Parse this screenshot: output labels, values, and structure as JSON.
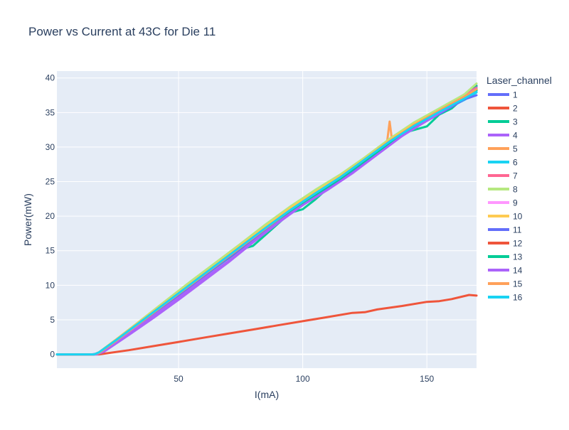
{
  "chart_data": {
    "type": "line",
    "title": "Power vs Current at 43C for Die 11",
    "xlabel": "I(mA)",
    "ylabel": "Power(mW)",
    "xlim": [
      1,
      170
    ],
    "ylim": [
      -2,
      41
    ],
    "xticks": [
      50,
      100,
      150
    ],
    "yticks": [
      0,
      5,
      10,
      15,
      20,
      25,
      30,
      35,
      40
    ],
    "grid": true,
    "legend_title": "Laser_channel",
    "legend_position": "right",
    "plot_background": "#e5ecf6",
    "series": [
      {
        "name": "1",
        "color": "#636efa",
        "points": [
          [
            1,
            0
          ],
          [
            15,
            0
          ],
          [
            17,
            0.1
          ],
          [
            20,
            0.7
          ],
          [
            30,
            3.0
          ],
          [
            40,
            5.8
          ],
          [
            50,
            8.6
          ],
          [
            60,
            11.4
          ],
          [
            70,
            14.3
          ],
          [
            80,
            17.1
          ],
          [
            90,
            19.9
          ],
          [
            100,
            22.4
          ],
          [
            110,
            24.6
          ],
          [
            120,
            26.8
          ],
          [
            130,
            29.6
          ],
          [
            140,
            32.3
          ],
          [
            150,
            34.2
          ],
          [
            160,
            35.8
          ],
          [
            170,
            38.9
          ]
        ]
      },
      {
        "name": "2",
        "color": "#ef553b",
        "points": [
          [
            1,
            0
          ],
          [
            18,
            0
          ],
          [
            20,
            0.1
          ],
          [
            30,
            0.6
          ],
          [
            40,
            1.2
          ],
          [
            50,
            1.8
          ],
          [
            60,
            2.4
          ],
          [
            70,
            3.0
          ],
          [
            80,
            3.6
          ],
          [
            90,
            4.2
          ],
          [
            100,
            4.8
          ],
          [
            110,
            5.4
          ],
          [
            120,
            6.0
          ],
          [
            125,
            6.1
          ],
          [
            130,
            6.5
          ],
          [
            140,
            7.0
          ],
          [
            150,
            7.6
          ],
          [
            155,
            7.7
          ],
          [
            160,
            8.0
          ],
          [
            167,
            8.6
          ],
          [
            170,
            8.5
          ]
        ]
      },
      {
        "name": "3",
        "color": "#00cc96",
        "points": [
          [
            1,
            0
          ],
          [
            16,
            0
          ],
          [
            18,
            0.2
          ],
          [
            25,
            1.9
          ],
          [
            35,
            4.6
          ],
          [
            45,
            7.3
          ],
          [
            55,
            10.0
          ],
          [
            65,
            12.6
          ],
          [
            75,
            15.2
          ],
          [
            80,
            15.7
          ],
          [
            85,
            17.3
          ],
          [
            95,
            20.5
          ],
          [
            100,
            21.0
          ],
          [
            105,
            22.4
          ],
          [
            110,
            24.0
          ],
          [
            120,
            26.6
          ],
          [
            130,
            29.8
          ],
          [
            140,
            32.0
          ],
          [
            150,
            33.0
          ],
          [
            155,
            34.7
          ],
          [
            160,
            35.6
          ],
          [
            170,
            38.8
          ]
        ]
      },
      {
        "name": "4",
        "color": "#ab63fa",
        "points": [
          [
            1,
            0
          ],
          [
            17,
            0
          ],
          [
            20,
            0.4
          ],
          [
            30,
            2.8
          ],
          [
            40,
            5.3
          ],
          [
            50,
            7.9
          ],
          [
            60,
            10.6
          ],
          [
            70,
            13.3
          ],
          [
            80,
            16.2
          ],
          [
            90,
            19.0
          ],
          [
            100,
            21.6
          ],
          [
            110,
            24.0
          ],
          [
            120,
            26.4
          ],
          [
            130,
            29.0
          ],
          [
            140,
            31.8
          ],
          [
            150,
            34.2
          ],
          [
            160,
            36.2
          ],
          [
            170,
            38.5
          ]
        ]
      },
      {
        "name": "5",
        "color": "#ffa15a",
        "points": [
          [
            1,
            0
          ],
          [
            16,
            0
          ],
          [
            18,
            0.3
          ],
          [
            25,
            2.0
          ],
          [
            35,
            4.7
          ],
          [
            45,
            7.4
          ],
          [
            55,
            10.1
          ],
          [
            65,
            12.8
          ],
          [
            75,
            15.5
          ],
          [
            85,
            18.2
          ],
          [
            95,
            20.9
          ],
          [
            105,
            23.3
          ],
          [
            115,
            25.6
          ],
          [
            125,
            28.0
          ],
          [
            132,
            30.1
          ],
          [
            134,
            30.8
          ],
          [
            135,
            33.7
          ],
          [
            136,
            30.9
          ],
          [
            140,
            32.0
          ],
          [
            150,
            34.4
          ],
          [
            160,
            36.2
          ],
          [
            170,
            38.6
          ]
        ]
      },
      {
        "name": "6",
        "color": "#19d3f3",
        "points": [
          [
            1,
            0
          ],
          [
            16,
            0
          ],
          [
            18,
            0.2
          ],
          [
            25,
            2.1
          ],
          [
            35,
            4.8
          ],
          [
            45,
            7.5
          ],
          [
            55,
            10.2
          ],
          [
            65,
            12.9
          ],
          [
            75,
            15.6
          ],
          [
            85,
            18.3
          ],
          [
            95,
            20.9
          ],
          [
            105,
            23.3
          ],
          [
            115,
            25.5
          ],
          [
            125,
            28.0
          ],
          [
            135,
            30.7
          ],
          [
            145,
            33.0
          ],
          [
            155,
            35.0
          ],
          [
            165,
            36.8
          ],
          [
            170,
            37.9
          ]
        ]
      },
      {
        "name": "7",
        "color": "#ff6692",
        "points": [
          [
            1,
            0
          ],
          [
            16,
            0
          ],
          [
            18,
            0.2
          ],
          [
            25,
            2.0
          ],
          [
            35,
            4.7
          ],
          [
            45,
            7.4
          ],
          [
            55,
            10.1
          ],
          [
            65,
            12.8
          ],
          [
            75,
            15.5
          ],
          [
            85,
            18.2
          ],
          [
            95,
            20.8
          ],
          [
            105,
            23.2
          ],
          [
            115,
            25.5
          ],
          [
            125,
            28.0
          ],
          [
            135,
            30.8
          ],
          [
            145,
            33.2
          ],
          [
            155,
            35.4
          ],
          [
            165,
            37.6
          ],
          [
            170,
            38.6
          ]
        ]
      },
      {
        "name": "8",
        "color": "#b6e880",
        "points": [
          [
            1,
            0
          ],
          [
            16,
            0
          ],
          [
            18,
            0.3
          ],
          [
            25,
            2.2
          ],
          [
            35,
            5.0
          ],
          [
            45,
            7.8
          ],
          [
            55,
            10.6
          ],
          [
            65,
            13.3
          ],
          [
            75,
            16.0
          ],
          [
            85,
            18.8
          ],
          [
            95,
            21.4
          ],
          [
            105,
            23.8
          ],
          [
            115,
            26.0
          ],
          [
            125,
            28.5
          ],
          [
            135,
            31.2
          ],
          [
            145,
            33.6
          ],
          [
            155,
            35.6
          ],
          [
            165,
            37.6
          ],
          [
            170,
            39.2
          ]
        ]
      },
      {
        "name": "9",
        "color": "#ff97ff",
        "points": [
          [
            1,
            0
          ],
          [
            16,
            0
          ],
          [
            18,
            0.2
          ],
          [
            25,
            2.0
          ],
          [
            35,
            4.7
          ],
          [
            45,
            7.4
          ],
          [
            55,
            10.1
          ],
          [
            65,
            12.8
          ],
          [
            75,
            15.5
          ],
          [
            85,
            18.2
          ],
          [
            95,
            20.8
          ],
          [
            105,
            23.0
          ],
          [
            115,
            25.2
          ],
          [
            125,
            27.8
          ],
          [
            135,
            30.4
          ],
          [
            145,
            32.8
          ],
          [
            155,
            35.0
          ],
          [
            165,
            37.0
          ],
          [
            170,
            38.2
          ]
        ]
      },
      {
        "name": "10",
        "color": "#fecb52",
        "points": [
          [
            1,
            0
          ],
          [
            16,
            0
          ],
          [
            18,
            0.3
          ],
          [
            25,
            2.2
          ],
          [
            35,
            4.9
          ],
          [
            45,
            7.6
          ],
          [
            55,
            10.3
          ],
          [
            65,
            13.0
          ],
          [
            75,
            15.8
          ],
          [
            85,
            18.5
          ],
          [
            95,
            21.2
          ],
          [
            105,
            23.5
          ],
          [
            115,
            25.8
          ],
          [
            125,
            28.3
          ],
          [
            135,
            31.0
          ],
          [
            145,
            33.4
          ],
          [
            155,
            35.3
          ],
          [
            165,
            37.2
          ],
          [
            170,
            38.4
          ]
        ]
      },
      {
        "name": "11",
        "color": "#636efa",
        "points": [
          [
            1,
            0
          ],
          [
            16,
            0
          ],
          [
            18,
            0.2
          ],
          [
            25,
            2.0
          ],
          [
            35,
            4.6
          ],
          [
            45,
            7.2
          ],
          [
            55,
            9.9
          ],
          [
            65,
            12.6
          ],
          [
            75,
            15.3
          ],
          [
            85,
            18.0
          ],
          [
            95,
            20.6
          ],
          [
            105,
            22.9
          ],
          [
            115,
            25.2
          ],
          [
            125,
            27.8
          ],
          [
            135,
            30.4
          ],
          [
            145,
            32.8
          ],
          [
            155,
            34.8
          ],
          [
            165,
            36.9
          ],
          [
            170,
            37.5
          ]
        ]
      },
      {
        "name": "12",
        "color": "#ef553b",
        "points": [
          [
            1,
            0
          ],
          [
            16,
            0
          ],
          [
            18,
            0.2
          ],
          [
            25,
            2.0
          ],
          [
            35,
            4.7
          ],
          [
            45,
            7.4
          ],
          [
            55,
            10.1
          ],
          [
            65,
            12.8
          ],
          [
            75,
            15.5
          ],
          [
            85,
            18.2
          ],
          [
            95,
            20.8
          ],
          [
            105,
            23.2
          ],
          [
            115,
            25.5
          ],
          [
            125,
            28.1
          ],
          [
            135,
            30.8
          ],
          [
            145,
            33.2
          ],
          [
            155,
            35.2
          ],
          [
            165,
            37.2
          ],
          [
            170,
            38.3
          ]
        ]
      },
      {
        "name": "13",
        "color": "#00cc96",
        "points": [
          [
            1,
            0
          ],
          [
            16,
            0
          ],
          [
            18,
            0.2
          ],
          [
            25,
            2.0
          ],
          [
            35,
            4.7
          ],
          [
            45,
            7.4
          ],
          [
            55,
            10.1
          ],
          [
            65,
            12.8
          ],
          [
            75,
            15.5
          ],
          [
            85,
            18.2
          ],
          [
            95,
            20.8
          ],
          [
            105,
            23.1
          ],
          [
            115,
            25.4
          ],
          [
            125,
            28.0
          ],
          [
            135,
            30.6
          ],
          [
            145,
            33.0
          ],
          [
            155,
            35.0
          ],
          [
            165,
            37.1
          ],
          [
            170,
            38.2
          ]
        ]
      },
      {
        "name": "14",
        "color": "#ab63fa",
        "points": [
          [
            1,
            0
          ],
          [
            17,
            0
          ],
          [
            20,
            0.5
          ],
          [
            30,
            3.0
          ],
          [
            40,
            5.6
          ],
          [
            50,
            8.2
          ],
          [
            60,
            10.9
          ],
          [
            70,
            13.5
          ],
          [
            80,
            16.3
          ],
          [
            90,
            19.1
          ],
          [
            100,
            21.6
          ],
          [
            110,
            23.8
          ],
          [
            120,
            26.2
          ],
          [
            130,
            28.9
          ],
          [
            140,
            31.6
          ],
          [
            150,
            33.8
          ],
          [
            160,
            36.0
          ],
          [
            170,
            38.5
          ]
        ]
      },
      {
        "name": "15",
        "color": "#ffa15a",
        "points": [
          [
            1,
            0
          ],
          [
            16,
            0
          ],
          [
            18,
            0.2
          ],
          [
            25,
            2.0
          ],
          [
            35,
            4.7
          ],
          [
            45,
            7.4
          ],
          [
            55,
            10.1
          ],
          [
            65,
            12.8
          ],
          [
            75,
            15.5
          ],
          [
            85,
            18.2
          ],
          [
            95,
            20.9
          ],
          [
            105,
            23.3
          ],
          [
            115,
            25.6
          ],
          [
            125,
            28.2
          ],
          [
            135,
            30.9
          ],
          [
            145,
            33.2
          ],
          [
            155,
            35.3
          ],
          [
            165,
            37.3
          ],
          [
            170,
            38.4
          ]
        ]
      },
      {
        "name": "16",
        "color": "#19d3f3",
        "points": [
          [
            1,
            0
          ],
          [
            16,
            0
          ],
          [
            18,
            0.3
          ],
          [
            25,
            2.1
          ],
          [
            35,
            4.8
          ],
          [
            45,
            7.5
          ],
          [
            55,
            10.2
          ],
          [
            65,
            12.9
          ],
          [
            75,
            15.6
          ],
          [
            85,
            18.3
          ],
          [
            95,
            20.9
          ],
          [
            105,
            23.3
          ],
          [
            115,
            25.6
          ],
          [
            125,
            28.2
          ],
          [
            135,
            30.8
          ],
          [
            145,
            33.1
          ],
          [
            155,
            35.1
          ],
          [
            165,
            37.0
          ],
          [
            170,
            38.0
          ]
        ]
      }
    ]
  }
}
